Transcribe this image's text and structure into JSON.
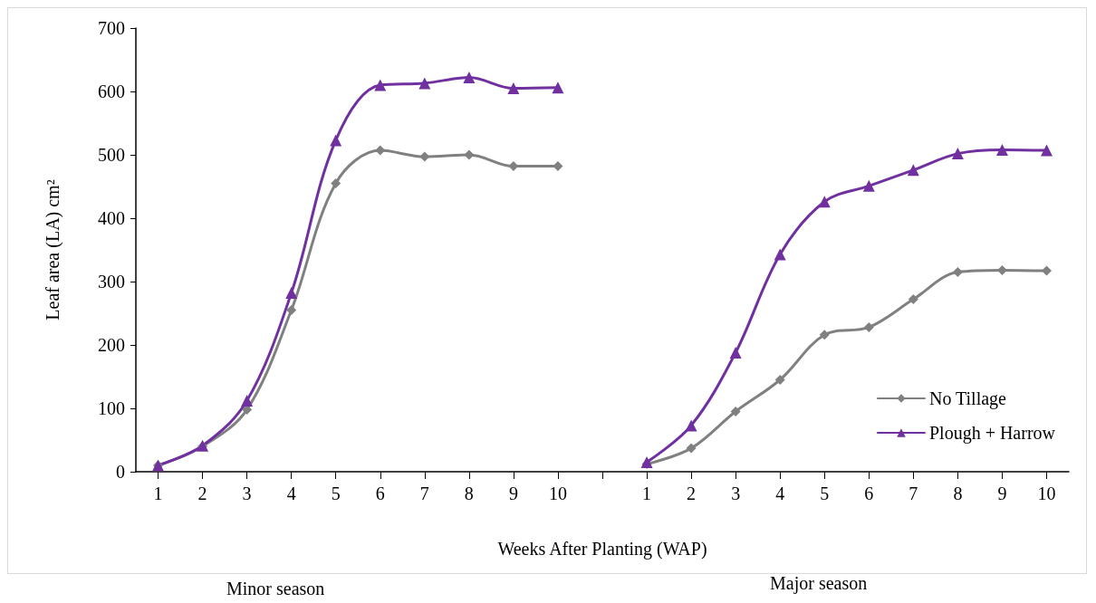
{
  "chart_data": {
    "type": "line",
    "xlabel": "Weeks After Planting (WAP)",
    "ylabel": "Leaf area (LA) cm²",
    "categories": [
      "1",
      "2",
      "3",
      "4",
      "5",
      "6",
      "7",
      "8",
      "9",
      "10",
      null,
      "1",
      "2",
      "3",
      "4",
      "5",
      "6",
      "7",
      "8",
      "9",
      "10"
    ],
    "series": [
      {
        "name": "No Tillage",
        "color": "#808080",
        "marker": "diamond",
        "values": [
          10,
          40,
          98,
          255,
          455,
          507,
          497,
          500,
          482,
          482,
          null,
          12,
          37,
          95,
          145,
          216,
          228,
          272,
          315,
          318,
          317
        ]
      },
      {
        "name": "Plough + Harrow",
        "color": "#7030a0",
        "marker": "triangle",
        "values": [
          10,
          41,
          112,
          282,
          523,
          610,
          613,
          622,
          605,
          606,
          null,
          15,
          73,
          188,
          343,
          426,
          451,
          476,
          502,
          508,
          507
        ]
      }
    ],
    "ylim": [
      0,
      700
    ],
    "yticks": [
      0,
      100,
      200,
      300,
      400,
      500,
      600,
      700
    ],
    "grid": false,
    "legend": "bottom right",
    "line_style": "solid",
    "annotations": [
      "Minor season",
      "Major season"
    ]
  }
}
